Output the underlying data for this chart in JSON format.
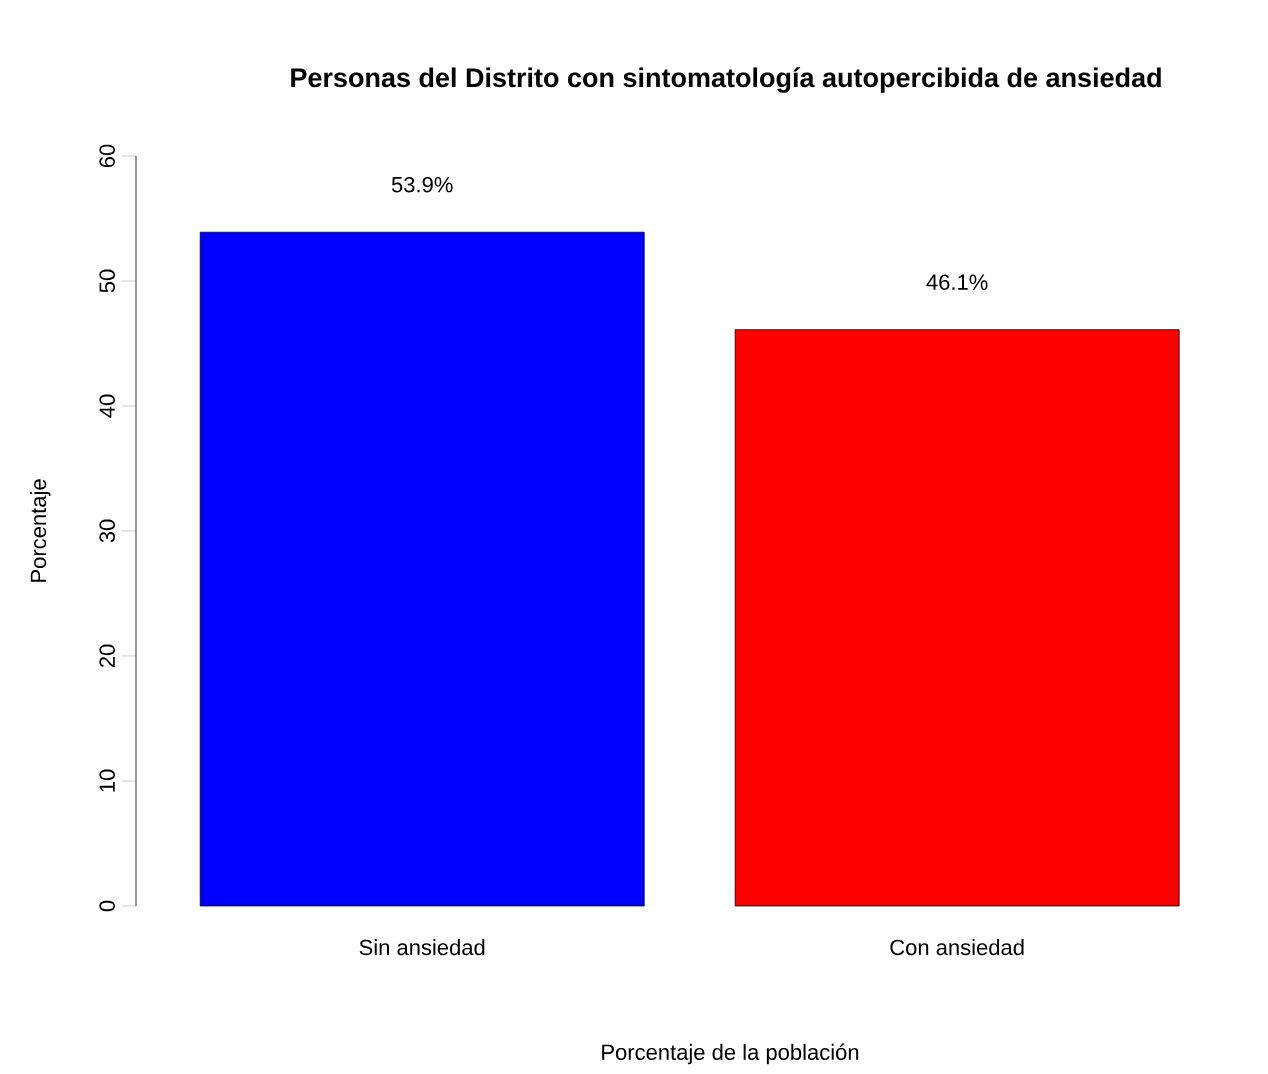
{
  "chart_data": {
    "type": "bar",
    "title": "Personas del Distrito con sintomatología autopercibida de ansiedad",
    "xlabel": "Porcentaje de la población",
    "ylabel": "Porcentaje",
    "categories": [
      "Sin ansiedad",
      "Con ansiedad"
    ],
    "values": [
      53.9,
      46.1
    ],
    "colors": [
      "#0000ff",
      "#ff0000"
    ],
    "value_labels": [
      "53.9%",
      "46.1%"
    ],
    "ylim": [
      0,
      60
    ],
    "yticks": [
      0,
      10,
      20,
      30,
      40,
      50,
      60
    ]
  }
}
